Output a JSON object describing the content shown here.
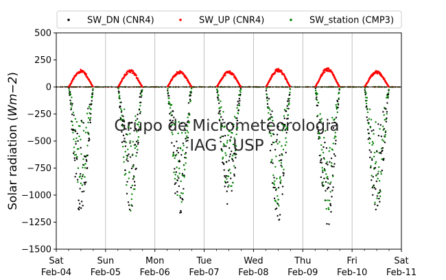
{
  "chart_data": {
    "type": "scatter",
    "ylabel_parts": [
      "Solar radiation (",
      "Wm",
      "−2",
      ")"
    ],
    "ylim": [
      -1500,
      500
    ],
    "yticks": [
      500,
      250,
      0,
      -250,
      -500,
      -750,
      -1000,
      -1250,
      -1500
    ],
    "ytick_labels": [
      "500",
      "250",
      "0",
      "−250",
      "−500",
      "−750",
      "−1000",
      "−1250",
      "−1500"
    ],
    "xlim_days": [
      0,
      7
    ],
    "xticks": [
      {
        "day": 0,
        "line1": "Sat",
        "line2": "Feb-04"
      },
      {
        "day": 1,
        "line1": "Sun",
        "line2": "Feb-05"
      },
      {
        "day": 2,
        "line1": "Mon",
        "line2": "Feb-06"
      },
      {
        "day": 3,
        "line1": "Tue",
        "line2": "Feb-07"
      },
      {
        "day": 4,
        "line1": "Wed",
        "line2": "Feb-08"
      },
      {
        "day": 5,
        "line1": "Thu",
        "line2": "Feb-09"
      },
      {
        "day": 6,
        "line1": "Fri",
        "line2": "Feb-10"
      },
      {
        "day": 7,
        "line1": "Sat",
        "line2": "Feb-11"
      }
    ],
    "grid": "vertical",
    "legend_position": "top",
    "watermark": [
      "Grupo de Micrometeorologia",
      "IAG - USP"
    ],
    "series": [
      {
        "name": "SW_DN (CNR4)",
        "color": "#000000",
        "daily_min": [
          -1210,
          -1170,
          -1200,
          -1190,
          -1270,
          -1330,
          -1200
        ],
        "daily_peak_up": [
          0,
          0,
          0,
          0,
          0,
          0,
          0
        ]
      },
      {
        "name": "SW_UP (CNR4)",
        "color": "#ff0000",
        "daily_max": [
          160,
          160,
          150,
          150,
          170,
          175,
          150
        ]
      },
      {
        "name": "SW_station (CMP3)",
        "color": "#008000",
        "daily_min": [
          -1000,
          -1165,
          -1150,
          -1050,
          -1170,
          -1160,
          -1130
        ]
      }
    ],
    "daylight_hours": [
      6,
      18
    ]
  }
}
